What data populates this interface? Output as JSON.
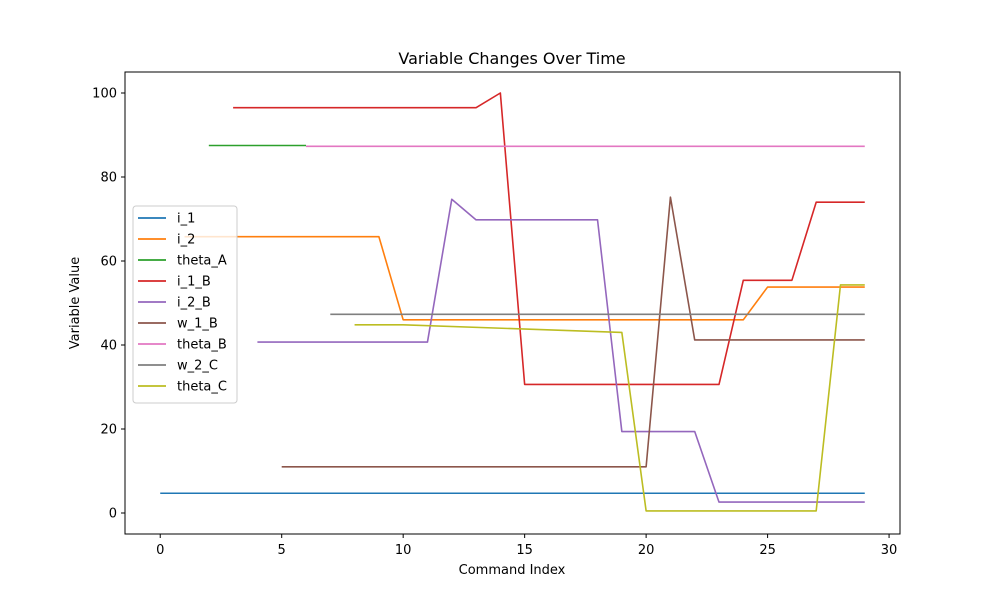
{
  "chart_data": {
    "type": "line",
    "title": "Variable Changes Over Time",
    "xlabel": "Command Index",
    "ylabel": "Variable Value",
    "xlim": [
      -1.45,
      30.45
    ],
    "ylim": [
      -5,
      105
    ],
    "xticks": [
      0,
      5,
      10,
      15,
      20,
      25,
      30
    ],
    "yticks": [
      0,
      20,
      40,
      60,
      80,
      100
    ],
    "grid": false,
    "legend_position": "center-left",
    "series": [
      {
        "name": "i_1",
        "color": "#1f77b4",
        "points": [
          [
            0,
            4.7
          ],
          [
            29,
            4.7
          ]
        ]
      },
      {
        "name": "i_2",
        "color": "#ff7f0e",
        "points": [
          [
            1,
            65.8
          ],
          [
            9,
            65.8
          ],
          [
            10,
            46
          ],
          [
            24,
            46
          ],
          [
            25,
            53.8
          ],
          [
            29,
            53.8
          ]
        ]
      },
      {
        "name": "theta_A",
        "color": "#2ca02c",
        "points": [
          [
            2,
            87.5
          ],
          [
            6,
            87.5
          ]
        ]
      },
      {
        "name": "i_1_B",
        "color": "#d62728",
        "points": [
          [
            3,
            96.5
          ],
          [
            13,
            96.5
          ],
          [
            14,
            100
          ],
          [
            15,
            30.6
          ],
          [
            23,
            30.6
          ],
          [
            24,
            55.4
          ],
          [
            26,
            55.4
          ],
          [
            27,
            74
          ],
          [
            29,
            74
          ]
        ]
      },
      {
        "name": "i_2_B",
        "color": "#9467bd",
        "points": [
          [
            4,
            40.7
          ],
          [
            11,
            40.7
          ],
          [
            12,
            74.7
          ],
          [
            13,
            69.8
          ],
          [
            18,
            69.8
          ],
          [
            19,
            19.4
          ],
          [
            22,
            19.4
          ],
          [
            23,
            2.6
          ],
          [
            29,
            2.6
          ]
        ]
      },
      {
        "name": "w_1_B",
        "color": "#8c564b",
        "points": [
          [
            5,
            11
          ],
          [
            20,
            11
          ],
          [
            21,
            75.2
          ],
          [
            22,
            41.2
          ],
          [
            29,
            41.2
          ]
        ]
      },
      {
        "name": "theta_B",
        "color": "#e377c2",
        "points": [
          [
            6,
            87.3
          ],
          [
            29,
            87.3
          ]
        ]
      },
      {
        "name": "w_2_C",
        "color": "#7f7f7f",
        "points": [
          [
            7,
            47.3
          ],
          [
            29,
            47.3
          ]
        ]
      },
      {
        "name": "theta_C",
        "color": "#bcbd22",
        "points": [
          [
            8,
            44.8
          ],
          [
            10,
            44.8
          ],
          [
            19,
            43
          ],
          [
            20,
            0.5
          ],
          [
            27,
            0.5
          ],
          [
            28,
            54.3
          ],
          [
            29,
            54.3
          ]
        ]
      }
    ]
  }
}
